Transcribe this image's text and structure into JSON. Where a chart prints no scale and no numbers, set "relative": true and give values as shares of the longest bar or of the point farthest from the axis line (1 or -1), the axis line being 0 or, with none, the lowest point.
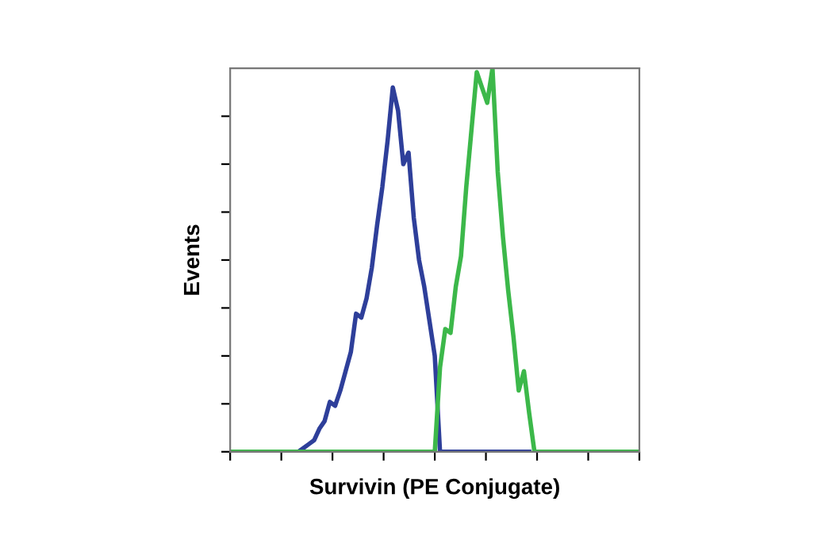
{
  "chart_data": {
    "type": "line",
    "relative": true,
    "xlabel": "Survivin (PE Conjugate)",
    "ylabel": "Events",
    "tick_labels": false,
    "grid": false,
    "legend": false,
    "categories": [
      null,
      null,
      null,
      null,
      null,
      null,
      null,
      null,
      null,
      null,
      null,
      null,
      null,
      null,
      null,
      null,
      null,
      null,
      null,
      null,
      null,
      null,
      null,
      null,
      null,
      null,
      null,
      null,
      null,
      null,
      null,
      null,
      null,
      null,
      null,
      null,
      null,
      null,
      null,
      null,
      null,
      null,
      null,
      null,
      null,
      null,
      null,
      null,
      null,
      null,
      null,
      null,
      null,
      null,
      null,
      null,
      null,
      null,
      null,
      null,
      null,
      null,
      null,
      null,
      null,
      null,
      null,
      null,
      null,
      null,
      null,
      null,
      null,
      null,
      null,
      null,
      null,
      null,
      null
    ],
    "series": [
      {
        "color": "#2e3f9a",
        "values": [
          null,
          null,
          null,
          null,
          null,
          null,
          null,
          null,
          null,
          null,
          null,
          null,
          null,
          0,
          0.01,
          0.02,
          0.03,
          0.06,
          0.08,
          0.13,
          0.12,
          0.16,
          0.21,
          0.26,
          0.36,
          0.35,
          0.4,
          0.48,
          0.59,
          0.69,
          0.81,
          0.95,
          0.89,
          0.75,
          0.78,
          0.61,
          0.5,
          0.43,
          0.34,
          0.25,
          0,
          0,
          0,
          0,
          0,
          0,
          0,
          0,
          0,
          0,
          0,
          0,
          0,
          0,
          0,
          0,
          0,
          0,
          null,
          null,
          null,
          null,
          null,
          null,
          null,
          null,
          null,
          null,
          null,
          null,
          null,
          null,
          null,
          null,
          null,
          null,
          null,
          null,
          null
        ]
      },
      {
        "color": "#3cb84a",
        "values": [
          0,
          0,
          0,
          0,
          0,
          0,
          0,
          0,
          0,
          0,
          0,
          0,
          0,
          0,
          0,
          0,
          0,
          0,
          0,
          0,
          0,
          0,
          0,
          0,
          0,
          0,
          0,
          0,
          0,
          0,
          0,
          0,
          0,
          0,
          0,
          0,
          0,
          0,
          0,
          0,
          0.22,
          0.32,
          0.31,
          0.43,
          0.51,
          0.69,
          0.84,
          0.99,
          0.95,
          0.91,
          1.0,
          0.73,
          0.56,
          0.42,
          0.3,
          0.16,
          0.21,
          0.1,
          0,
          0,
          0,
          0,
          0,
          0,
          0,
          0,
          0,
          0,
          0,
          0,
          0,
          0,
          0,
          0,
          0,
          0,
          0,
          0,
          0
        ]
      }
    ]
  }
}
